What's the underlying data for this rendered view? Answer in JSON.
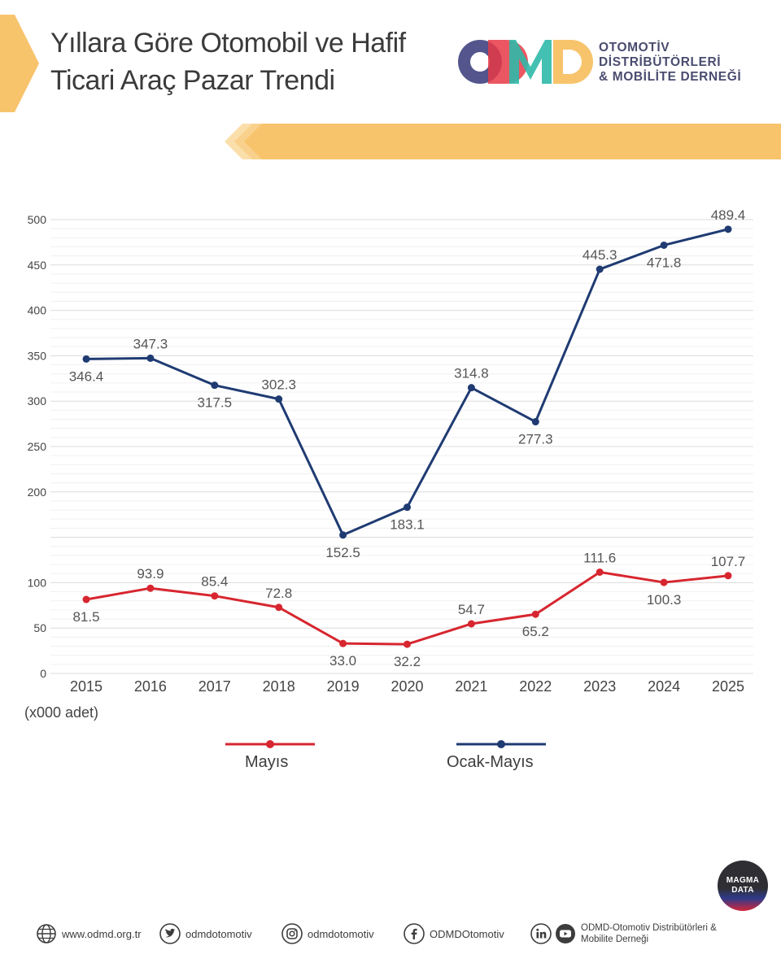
{
  "header": {
    "title_line1": "Yıllara Göre Otomobil ve Hafif",
    "title_line2": "Ticari Araç Pazar Trendi"
  },
  "logo": {
    "mark": "ODMD",
    "line1": "OTOMOTİV",
    "line2": "DİSTRİBÜTÖRLERİ",
    "line3": "& MOBİLİTE DERNEĞİ"
  },
  "colors": {
    "accent": "#f7c46c",
    "accent_light": "#fbdfaa",
    "series_red": "#d7262f",
    "series_navy": "#1f3b72",
    "grid": "#e6e6e6",
    "axis_text": "#444444"
  },
  "chart_data": {
    "type": "line",
    "title": "Yıllara Göre Otomobil ve Hafif Ticari Araç Pazar Trendi",
    "unit_label": "(x000 adet)",
    "categories": [
      "2015",
      "2016",
      "2017",
      "2018",
      "2019",
      "2020",
      "2021",
      "2022",
      "2023",
      "2024",
      "2025"
    ],
    "y_ticks": [
      0,
      50,
      100,
      150,
      200,
      250,
      300,
      350,
      400,
      450,
      500
    ],
    "y_tick_labels": [
      "0",
      "50",
      "100",
      "",
      "200",
      "250",
      "300",
      "350",
      "400",
      "450",
      "500"
    ],
    "ylim": [
      0,
      500
    ],
    "grid": true,
    "legend_position": "bottom",
    "series": [
      {
        "name": "Mayıs",
        "color": "#d7262f",
        "values": [
          81.5,
          93.9,
          85.4,
          72.8,
          33.0,
          32.2,
          54.7,
          65.2,
          111.6,
          100.3,
          107.7
        ],
        "labels": [
          "81.5",
          "93.9",
          "85.4",
          "72.8",
          "33.0",
          "32.2",
          "54.7",
          "65.2",
          "111.6",
          "100.3",
          "107.7"
        ],
        "label_pos": [
          "below",
          "above",
          "above",
          "above",
          "below",
          "below",
          "above",
          "below",
          "above",
          "below",
          "above"
        ]
      },
      {
        "name": "Ocak-Mayıs",
        "color": "#1f3b72",
        "values": [
          346.4,
          347.3,
          317.5,
          302.3,
          152.5,
          183.1,
          314.8,
          277.3,
          445.3,
          471.8,
          489.4
        ],
        "labels": [
          "346.4",
          "347.3",
          "317.5",
          "302.3",
          "152.5",
          "183.1",
          "314.8",
          "277.3",
          "445.3",
          "471.8",
          "489.4"
        ],
        "label_pos": [
          "below",
          "above",
          "below",
          "above",
          "below",
          "below",
          "above",
          "below",
          "above",
          "below",
          "above"
        ]
      }
    ]
  },
  "legend": {
    "mayis": "Mayıs",
    "ocak_mayis": "Ocak-Mayıs"
  },
  "badge": {
    "line1": "MAGMA",
    "line2": "DATA"
  },
  "footer": {
    "website": "www.odmd.org.tr",
    "twitter": "odmdotomotiv",
    "instagram": "odmdotomotiv",
    "facebook": "ODMDOtomotiv",
    "linkedin_youtube": "ODMD-Otomotiv Distribütörleri & Mobilite Derneği"
  }
}
